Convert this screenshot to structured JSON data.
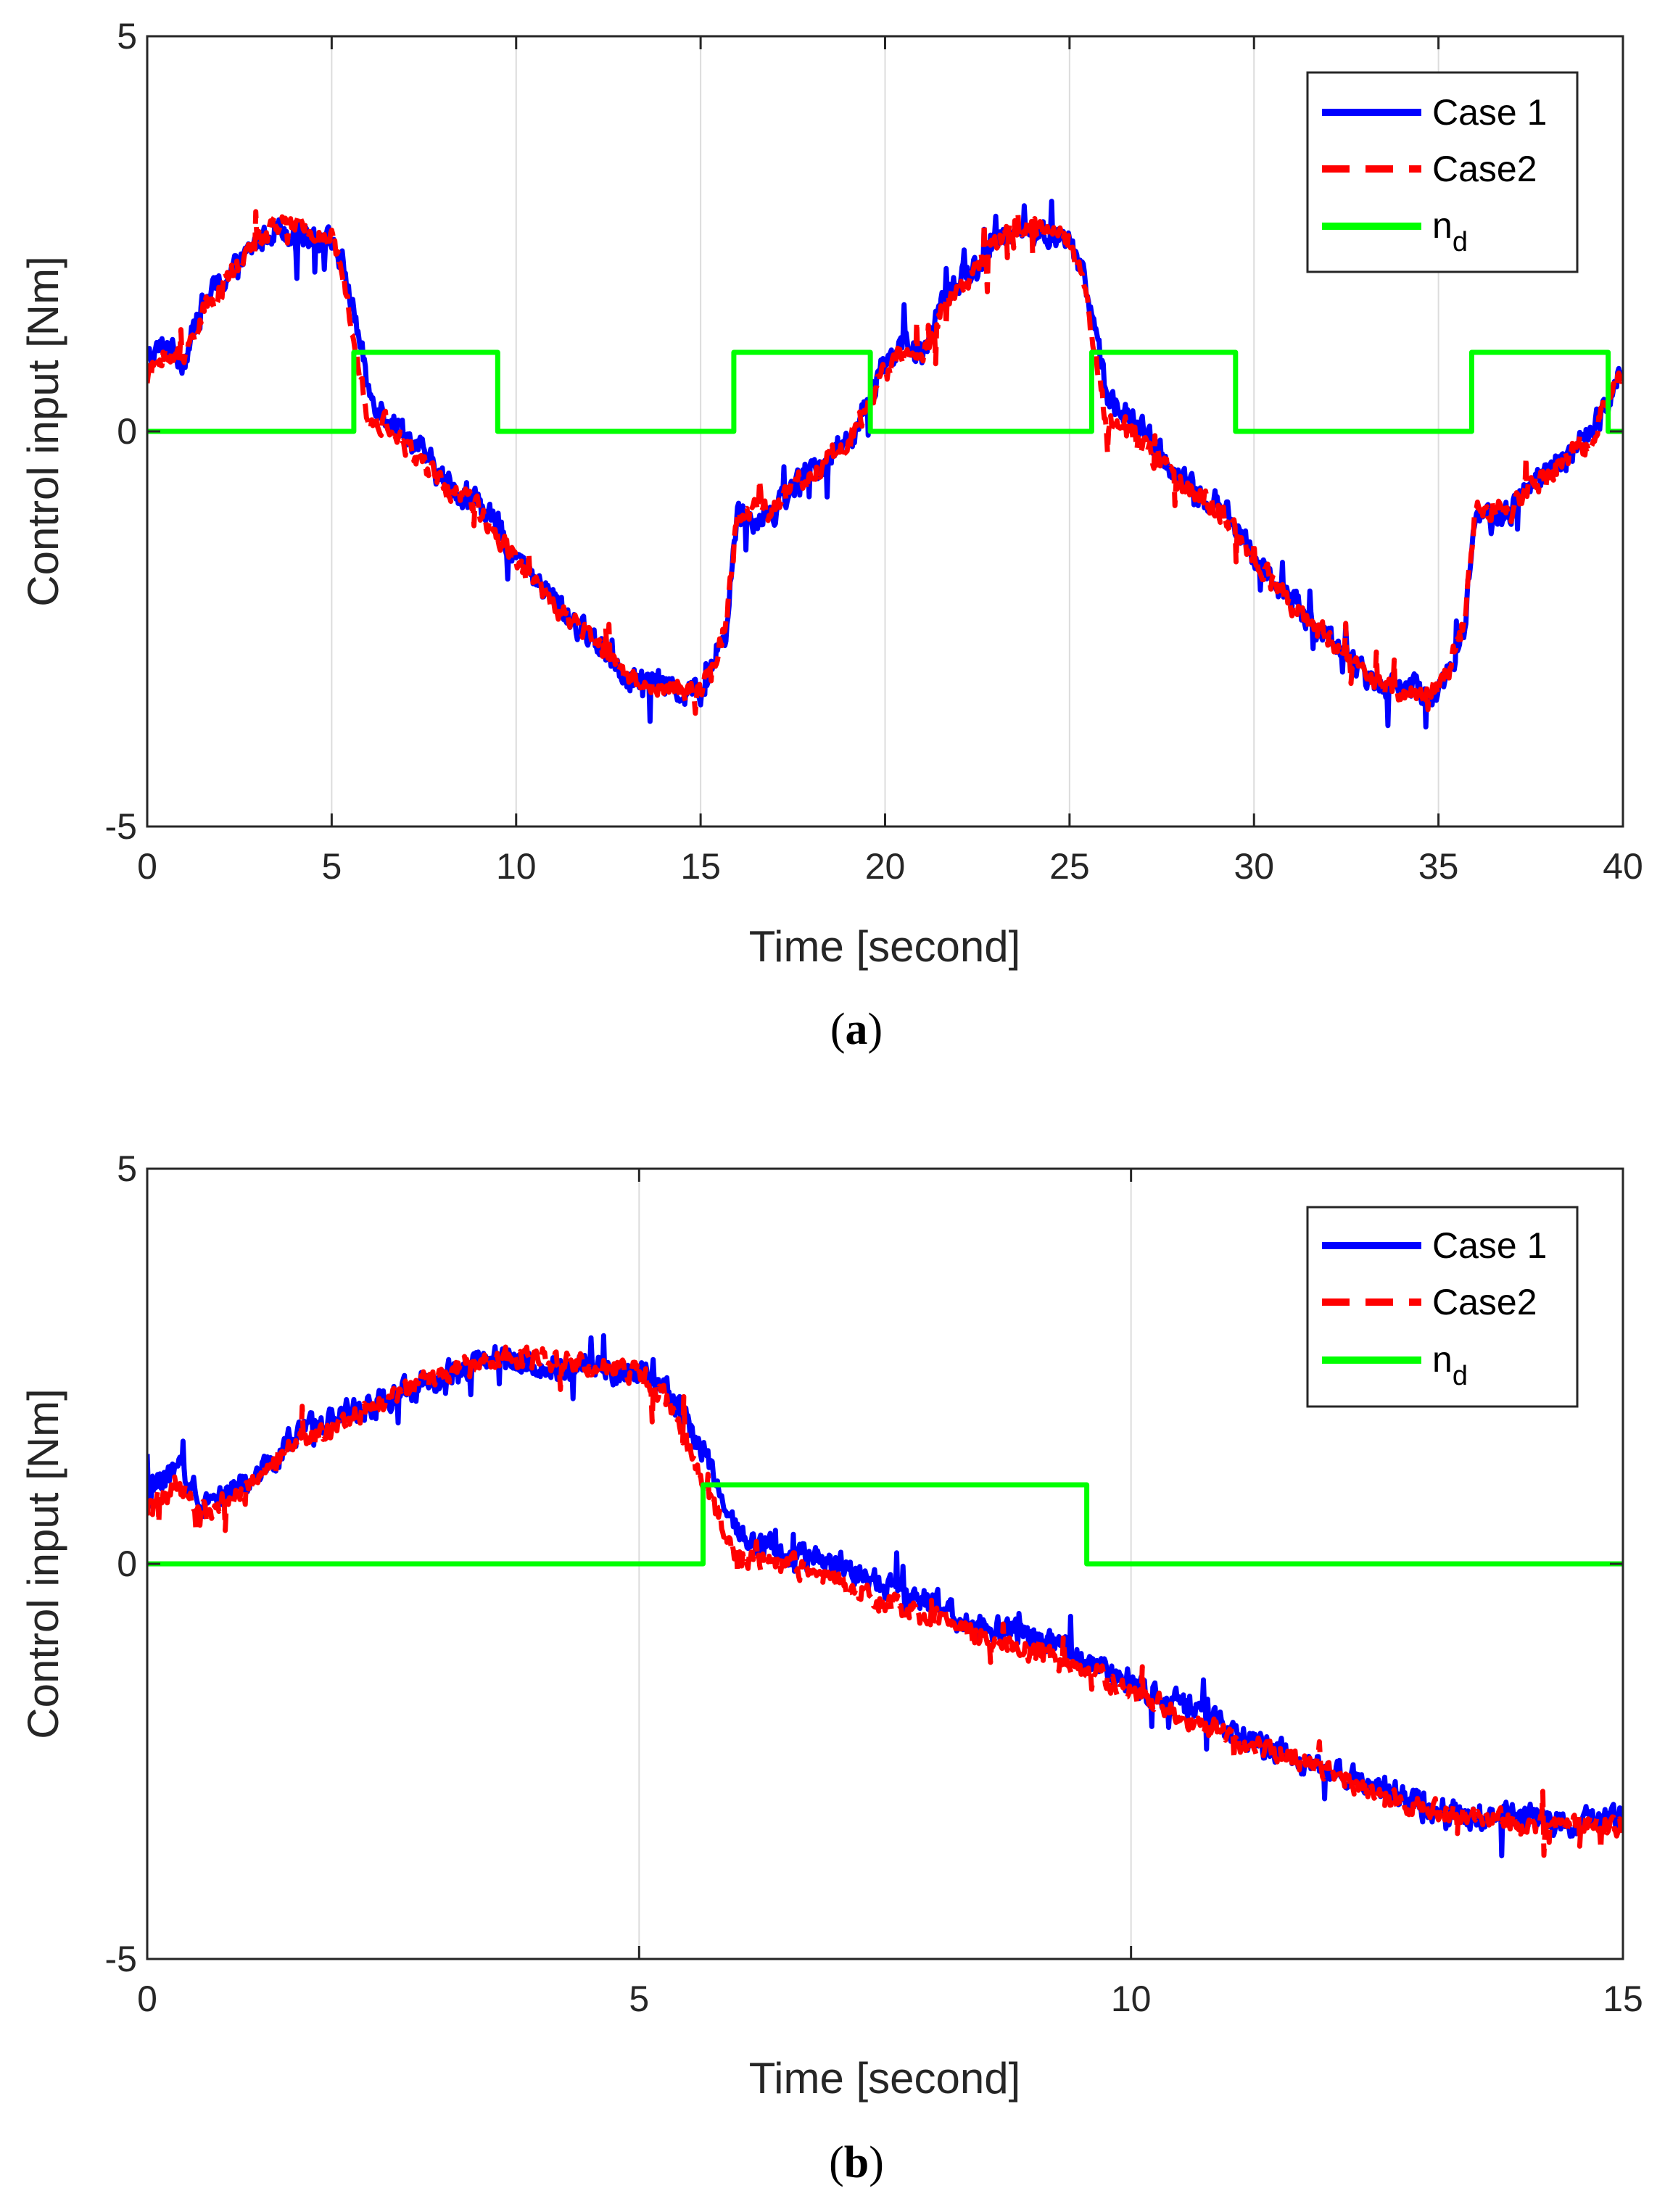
{
  "chart_data": [
    {
      "type": "line",
      "panel_label": "a",
      "xlabel": "Time [second]",
      "ylabel": "Control input [Nm]",
      "xlim": [
        0,
        40
      ],
      "ylim": [
        -5,
        5
      ],
      "xticks": [
        0,
        5,
        10,
        15,
        20,
        25,
        30,
        35,
        40
      ],
      "yticks": [
        -5,
        0,
        5
      ],
      "grid": "x",
      "legend_position": "top-right",
      "series": [
        {
          "name": "Case 1",
          "color": "#0000ff",
          "style": "solid",
          "period": 20,
          "x": [
            0,
            0.5,
            1,
            1.5,
            2,
            2.5,
            3,
            3.5,
            4,
            4.5,
            5,
            5.3,
            5.7,
            6,
            6.5,
            7,
            7.5,
            8,
            8.5,
            9,
            9.5,
            10,
            10.5,
            11,
            11.5,
            12,
            12.5,
            13,
            13.5,
            14,
            14.5,
            15,
            15.3,
            15.7,
            16,
            16.5,
            17,
            17.5,
            18,
            18.5,
            19,
            19.5,
            20
          ],
          "y": [
            0.9,
            1.1,
            0.9,
            1.6,
            1.9,
            2.1,
            2.4,
            2.6,
            2.5,
            2.5,
            2.4,
            2.1,
            1.3,
            0.5,
            0.2,
            0.0,
            -0.3,
            -0.6,
            -0.8,
            -0.9,
            -1.2,
            -1.6,
            -1.9,
            -2.1,
            -2.4,
            -2.6,
            -2.8,
            -3.1,
            -3.2,
            -3.2,
            -3.3,
            -3.3,
            -3.0,
            -2.5,
            -1.0,
            -1.1,
            -1.0,
            -0.7,
            -0.5,
            -0.3,
            -0.1,
            0.3,
            0.9
          ],
          "noise_amplitude": 0.25
        },
        {
          "name": "Case2",
          "color": "#ff0000",
          "style": "dashed",
          "period": 20,
          "x": [
            0,
            0.5,
            1,
            1.5,
            2,
            2.5,
            3,
            3.5,
            4,
            4.5,
            5,
            5.3,
            5.7,
            6,
            6.5,
            7,
            7.5,
            8,
            8.5,
            9,
            9.5,
            10,
            10.5,
            11,
            11.5,
            12,
            12.5,
            13,
            13.5,
            14,
            14.5,
            15,
            15.3,
            15.7,
            16,
            16.5,
            17,
            17.5,
            18,
            18.5,
            19,
            19.5,
            20
          ],
          "y": [
            0.7,
            1.0,
            0.9,
            1.5,
            1.8,
            2.1,
            2.4,
            2.6,
            2.6,
            2.5,
            2.4,
            2.0,
            1.0,
            0.1,
            0.1,
            -0.2,
            -0.4,
            -0.7,
            -0.8,
            -1.0,
            -1.3,
            -1.6,
            -1.9,
            -2.2,
            -2.4,
            -2.6,
            -2.8,
            -3.1,
            -3.2,
            -3.3,
            -3.3,
            -3.3,
            -3.0,
            -2.4,
            -1.0,
            -1.0,
            -1.0,
            -0.7,
            -0.6,
            -0.3,
            -0.2,
            0.3,
            0.8
          ],
          "noise_amplitude": 0.2
        },
        {
          "name": "n_d",
          "color": "#00ff00",
          "style": "solid",
          "steps": [
            [
              0,
              0
            ],
            [
              5.6,
              1
            ],
            [
              9.5,
              0
            ],
            [
              15.9,
              1
            ],
            [
              19.6,
              0
            ],
            [
              25.6,
              1
            ],
            [
              29.5,
              0
            ],
            [
              35.9,
              1
            ],
            [
              39.6,
              0
            ],
            [
              40,
              0
            ]
          ]
        }
      ]
    },
    {
      "type": "line",
      "panel_label": "b",
      "xlabel": "Time [second]",
      "ylabel": "Control input [Nm]",
      "xlim": [
        0,
        15
      ],
      "ylim": [
        -5,
        5
      ],
      "xticks": [
        0,
        5,
        10,
        15
      ],
      "yticks": [
        -5,
        0,
        5
      ],
      "grid": "x",
      "legend_position": "top-right",
      "series": [
        {
          "name": "Case 1",
          "color": "#0000ff",
          "style": "solid",
          "x": [
            0,
            0.3,
            0.6,
            1,
            1.5,
            2,
            2.5,
            3,
            3.5,
            4,
            4.5,
            5,
            5.3,
            5.7,
            6,
            6.5,
            7,
            7.5,
            8,
            8.5,
            9,
            9.5,
            10,
            10.5,
            11,
            11.5,
            12,
            12.5,
            13,
            13.5,
            14,
            14.5,
            15
          ],
          "y": [
            0.9,
            1.2,
            0.8,
            1.0,
            1.6,
            1.9,
            2.1,
            2.4,
            2.6,
            2.5,
            2.5,
            2.4,
            2.2,
            1.3,
            0.4,
            0.1,
            0.0,
            -0.3,
            -0.5,
            -0.8,
            -0.9,
            -1.2,
            -1.5,
            -1.8,
            -2.1,
            -2.4,
            -2.6,
            -2.8,
            -3.1,
            -3.2,
            -3.2,
            -3.3,
            -3.2
          ],
          "noise_amplitude": 0.25
        },
        {
          "name": "Case2",
          "color": "#ff0000",
          "style": "dashed",
          "x": [
            0,
            0.3,
            0.6,
            1,
            1.5,
            2,
            2.5,
            3,
            3.5,
            4,
            4.5,
            5,
            5.3,
            5.7,
            6,
            6.5,
            7,
            7.5,
            8,
            8.5,
            9,
            9.5,
            10,
            10.5,
            11,
            11.5,
            12,
            12.5,
            13,
            13.5,
            14,
            14.5,
            15
          ],
          "y": [
            0.7,
            1.0,
            0.6,
            1.0,
            1.5,
            1.8,
            2.1,
            2.4,
            2.6,
            2.6,
            2.5,
            2.4,
            2.1,
            0.9,
            0.1,
            0.0,
            -0.2,
            -0.5,
            -0.7,
            -0.9,
            -1.1,
            -1.3,
            -1.6,
            -1.9,
            -2.2,
            -2.4,
            -2.6,
            -2.9,
            -3.1,
            -3.2,
            -3.3,
            -3.3,
            -3.3
          ],
          "noise_amplitude": 0.2
        },
        {
          "name": "n_d",
          "color": "#00ff00",
          "style": "solid",
          "steps": [
            [
              0,
              0
            ],
            [
              5.65,
              1
            ],
            [
              9.55,
              0
            ],
            [
              15,
              0
            ]
          ]
        }
      ]
    }
  ],
  "legend": {
    "case1": "Case 1",
    "case2": "Case2",
    "nd_main": "n",
    "nd_sub": "d"
  },
  "labels": {
    "a": "a",
    "b": "b"
  }
}
